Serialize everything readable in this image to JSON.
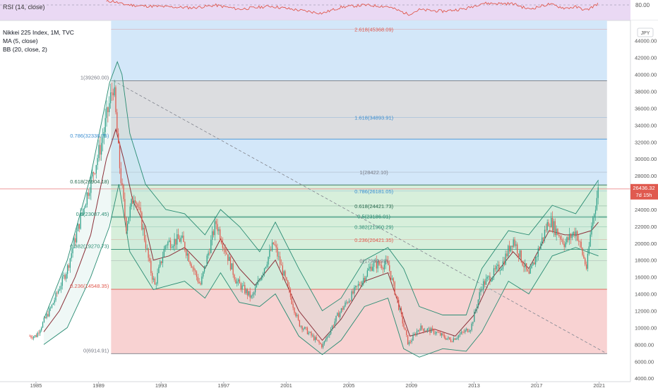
{
  "rsi_pane": {
    "label": "RSI (14, close)",
    "level_label": "80.00"
  },
  "legend": {
    "symbol": "Nikkei 225 Index, 1M, TVC",
    "ma": "MA (5, close)",
    "bb": "BB (20, close, 2)"
  },
  "currency": "JPY",
  "price_tag": {
    "price": "26436.32",
    "countdown": "7d 15h"
  },
  "colors": {
    "rsi_line": "#e05a4f",
    "rsi_band": "#ead9f4",
    "fib_blue": "#d3e7f9",
    "fib_gray": "#dcdde0",
    "fib_green": "#d7efdb",
    "fib_red": "#f8d2d2",
    "bb_line": "#2a8c73",
    "ma_line": "#8b2f38",
    "candle_up": "#32a08a",
    "candle_down": "#e05a4f",
    "price_line": "#e9898d"
  },
  "chart_data": {
    "type": "candlestick",
    "x_range": [
      1982.7,
      2023.0
    ],
    "y_range": [
      3600,
      46400
    ],
    "y_ticks": [
      "4000.00",
      "6000.00",
      "8000.00",
      "10000.00",
      "12000.00",
      "14000.00",
      "16000.00",
      "18000.00",
      "20000.00",
      "22000.00",
      "24000.00",
      "26000.00",
      "28000.00",
      "30000.00",
      "32000.00",
      "34000.00",
      "36000.00",
      "38000.00",
      "40000.00",
      "42000.00",
      "44000.00"
    ],
    "x_ticks": [
      "1985",
      "1989",
      "1993",
      "1997",
      "2001",
      "2005",
      "2009",
      "2013",
      "2017",
      "2021"
    ],
    "close_path": [
      [
        1985,
        9000
      ],
      [
        1986,
        12500
      ],
      [
        1987,
        17000
      ],
      [
        1988,
        24000
      ],
      [
        1989.2,
        32000
      ],
      [
        1989.95,
        38900
      ],
      [
        1990.3,
        30000
      ],
      [
        1990.75,
        22000
      ],
      [
        1991.3,
        26000
      ],
      [
        1991.8,
        22000
      ],
      [
        1992.3,
        17000
      ],
      [
        1992.6,
        15000
      ],
      [
        1993.3,
        20000
      ],
      [
        1994.3,
        20500
      ],
      [
        1995.5,
        15000
      ],
      [
        1996.5,
        22500
      ],
      [
        1997.8,
        15500
      ],
      [
        1998.8,
        13500
      ],
      [
        2000.2,
        20000
      ],
      [
        2001.8,
        10500
      ],
      [
        2003.3,
        7800
      ],
      [
        2004.3,
        11500
      ],
      [
        2005.8,
        15500
      ],
      [
        2006.5,
        17500
      ],
      [
        2007.5,
        17500
      ],
      [
        2008.8,
        8000
      ],
      [
        2009.5,
        10000
      ],
      [
        2010.5,
        9500
      ],
      [
        2011.5,
        8500
      ],
      [
        2012.8,
        10000
      ],
      [
        2013.5,
        15000
      ],
      [
        2014.8,
        17500
      ],
      [
        2015.5,
        20500
      ],
      [
        2016.5,
        16000
      ],
      [
        2017.8,
        22800
      ],
      [
        2018.8,
        20000
      ],
      [
        2019.5,
        21500
      ],
      [
        2020.2,
        17000
      ],
      [
        2020.5,
        22000
      ],
      [
        2020.95,
        26436
      ]
    ],
    "ma_path": [
      [
        1985.5,
        9500
      ],
      [
        1986.5,
        12000
      ],
      [
        1987.5,
        16000
      ],
      [
        1988.5,
        21000
      ],
      [
        1989.5,
        30000
      ],
      [
        1990.1,
        33500
      ],
      [
        1990.6,
        30000
      ],
      [
        1991.2,
        25000
      ],
      [
        1992,
        22000
      ],
      [
        1992.5,
        18000
      ],
      [
        1993.5,
        18500
      ],
      [
        1994.5,
        19500
      ],
      [
        1995.8,
        17000
      ],
      [
        1996.8,
        20500
      ],
      [
        1998,
        17000
      ],
      [
        1999,
        15000
      ],
      [
        2000.3,
        18000
      ],
      [
        2001.8,
        12000
      ],
      [
        2003.3,
        8500
      ],
      [
        2004.5,
        11000
      ],
      [
        2006,
        15500
      ],
      [
        2007.5,
        16500
      ],
      [
        2008.9,
        9000
      ],
      [
        2010.5,
        9800
      ],
      [
        2011.8,
        9000
      ],
      [
        2013,
        11500
      ],
      [
        2014,
        15500
      ],
      [
        2015.5,
        19000
      ],
      [
        2016.5,
        17000
      ],
      [
        2017.8,
        21500
      ],
      [
        2018.8,
        21000
      ],
      [
        2019.6,
        21000
      ],
      [
        2020.5,
        21500
      ],
      [
        2020.95,
        22500
      ]
    ],
    "bb_upper_path": [
      [
        1985.5,
        11000
      ],
      [
        1987,
        18000
      ],
      [
        1988.5,
        28000
      ],
      [
        1989.7,
        39000
      ],
      [
        1990.2,
        41500
      ],
      [
        1990.5,
        40000
      ],
      [
        1991,
        33000
      ],
      [
        1992,
        27000
      ],
      [
        1993.3,
        24000
      ],
      [
        1994.5,
        23500
      ],
      [
        1995.8,
        21000
      ],
      [
        1996.8,
        24000
      ],
      [
        1998,
        22000
      ],
      [
        1999.3,
        19000
      ],
      [
        2000.3,
        22500
      ],
      [
        2001.8,
        17000
      ],
      [
        2003.3,
        12000
      ],
      [
        2004.5,
        13500
      ],
      [
        2006,
        18000
      ],
      [
        2007.5,
        19500
      ],
      [
        2008.5,
        17000
      ],
      [
        2009.5,
        12500
      ],
      [
        2011,
        11500
      ],
      [
        2012.5,
        11500
      ],
      [
        2013.5,
        17000
      ],
      [
        2015.2,
        21500
      ],
      [
        2016.5,
        21000
      ],
      [
        2018,
        24500
      ],
      [
        2019.5,
        23500
      ],
      [
        2020.95,
        27500
      ]
    ],
    "bb_lower_path": [
      [
        1985.5,
        8000
      ],
      [
        1987,
        10000
      ],
      [
        1988.5,
        16000
      ],
      [
        1989.7,
        22000
      ],
      [
        1990.3,
        27000
      ],
      [
        1991,
        19000
      ],
      [
        1992.5,
        14500
      ],
      [
        1993.5,
        15000
      ],
      [
        1994.5,
        15500
      ],
      [
        1995.8,
        13500
      ],
      [
        1996.8,
        16500
      ],
      [
        1998,
        13000
      ],
      [
        1999.3,
        12500
      ],
      [
        2000.3,
        14000
      ],
      [
        2001.8,
        9000
      ],
      [
        2003.3,
        6800
      ],
      [
        2004.5,
        8500
      ],
      [
        2006,
        12500
      ],
      [
        2007.5,
        13500
      ],
      [
        2008.5,
        7500
      ],
      [
        2009.5,
        6500
      ],
      [
        2011,
        7500
      ],
      [
        2012.5,
        7200
      ],
      [
        2013.5,
        9500
      ],
      [
        2015.2,
        15500
      ],
      [
        2016.5,
        14000
      ],
      [
        2018,
        18500
      ],
      [
        2019.5,
        19500
      ],
      [
        2020.95,
        18500
      ]
    ],
    "fib_levels_left": [
      {
        "label": "1(39260.00)",
        "value": 39260,
        "x_from": 1989.8,
        "color": "#787b86"
      },
      {
        "label": "0.786(32338.75)",
        "value": 32338,
        "x_from": 1989.8,
        "color": "#3d8fd1"
      },
      {
        "label": "0.618(26904.18)",
        "value": 26904,
        "x_from": 1989.8,
        "color": "#2a6a4f"
      },
      {
        "label": "0.5(23087.45)",
        "value": 23087,
        "x_from": 1989.8,
        "color": "#2a8c73"
      },
      {
        "label": "0.382(19270.73)",
        "value": 19270,
        "x_from": 1989.8,
        "color": "#2a8c73"
      },
      {
        "label": "0.236(14548.35)",
        "value": 14548,
        "x_from": 1989.8,
        "color": "#e05a4f"
      },
      {
        "label": "0(6914.91)",
        "value": 6914,
        "x_from": 1989.8,
        "color": "#787b86"
      }
    ],
    "fib_levels_right": [
      {
        "label": "2.618(45368.09)",
        "value": 45368,
        "color": "#e05a4f"
      },
      {
        "label": "1.618(34893.91)",
        "value": 34893,
        "color": "#3d8fd1"
      },
      {
        "label": "1(28422.10)",
        "value": 28422,
        "color": "#787b86"
      },
      {
        "label": "0.786(26181.05)",
        "value": 26181,
        "color": "#3d8fd1"
      },
      {
        "label": "0.618(24421.73)",
        "value": 24421,
        "color": "#2a6a4f"
      },
      {
        "label": "0.5(23186.01)",
        "value": 23186,
        "color": "#2a8c73"
      },
      {
        "label": "0.382(21950.29)",
        "value": 21950,
        "color": "#2a8c73"
      },
      {
        "label": "0.236(20421.35)",
        "value": 20421,
        "color": "#e05a4f"
      },
      {
        "label": "0(17949.92)",
        "value": 17949,
        "color": "#787b86"
      }
    ],
    "fib_extension_box": {
      "x_from": 1989.8,
      "x_to": 2021.5
    },
    "trend_line": [
      [
        1989.95,
        39260
      ],
      [
        2021.5,
        6914
      ]
    ],
    "rsi_level": 80,
    "rsi_range": [
      0,
      100
    ],
    "rsi_path": [
      [
        1989.5,
        92
      ],
      [
        1989.9,
        95
      ],
      [
        1990.5,
        80
      ],
      [
        1991.5,
        72
      ],
      [
        1993,
        68
      ],
      [
        1995,
        62
      ],
      [
        1996.5,
        74
      ],
      [
        1998,
        55
      ],
      [
        2000,
        70
      ],
      [
        2002,
        48
      ],
      [
        2003.3,
        35
      ],
      [
        2004.5,
        65
      ],
      [
        2006,
        75
      ],
      [
        2007.5,
        68
      ],
      [
        2008.8,
        30
      ],
      [
        2009.5,
        52
      ],
      [
        2011,
        45
      ],
      [
        2012.5,
        58
      ],
      [
        2013.5,
        84
      ],
      [
        2015.5,
        82
      ],
      [
        2016.5,
        55
      ],
      [
        2017.8,
        80
      ],
      [
        2018.8,
        60
      ],
      [
        2019.5,
        66
      ],
      [
        2020.2,
        50
      ],
      [
        2020.95,
        84
      ]
    ],
    "current_price": 26436.32
  }
}
